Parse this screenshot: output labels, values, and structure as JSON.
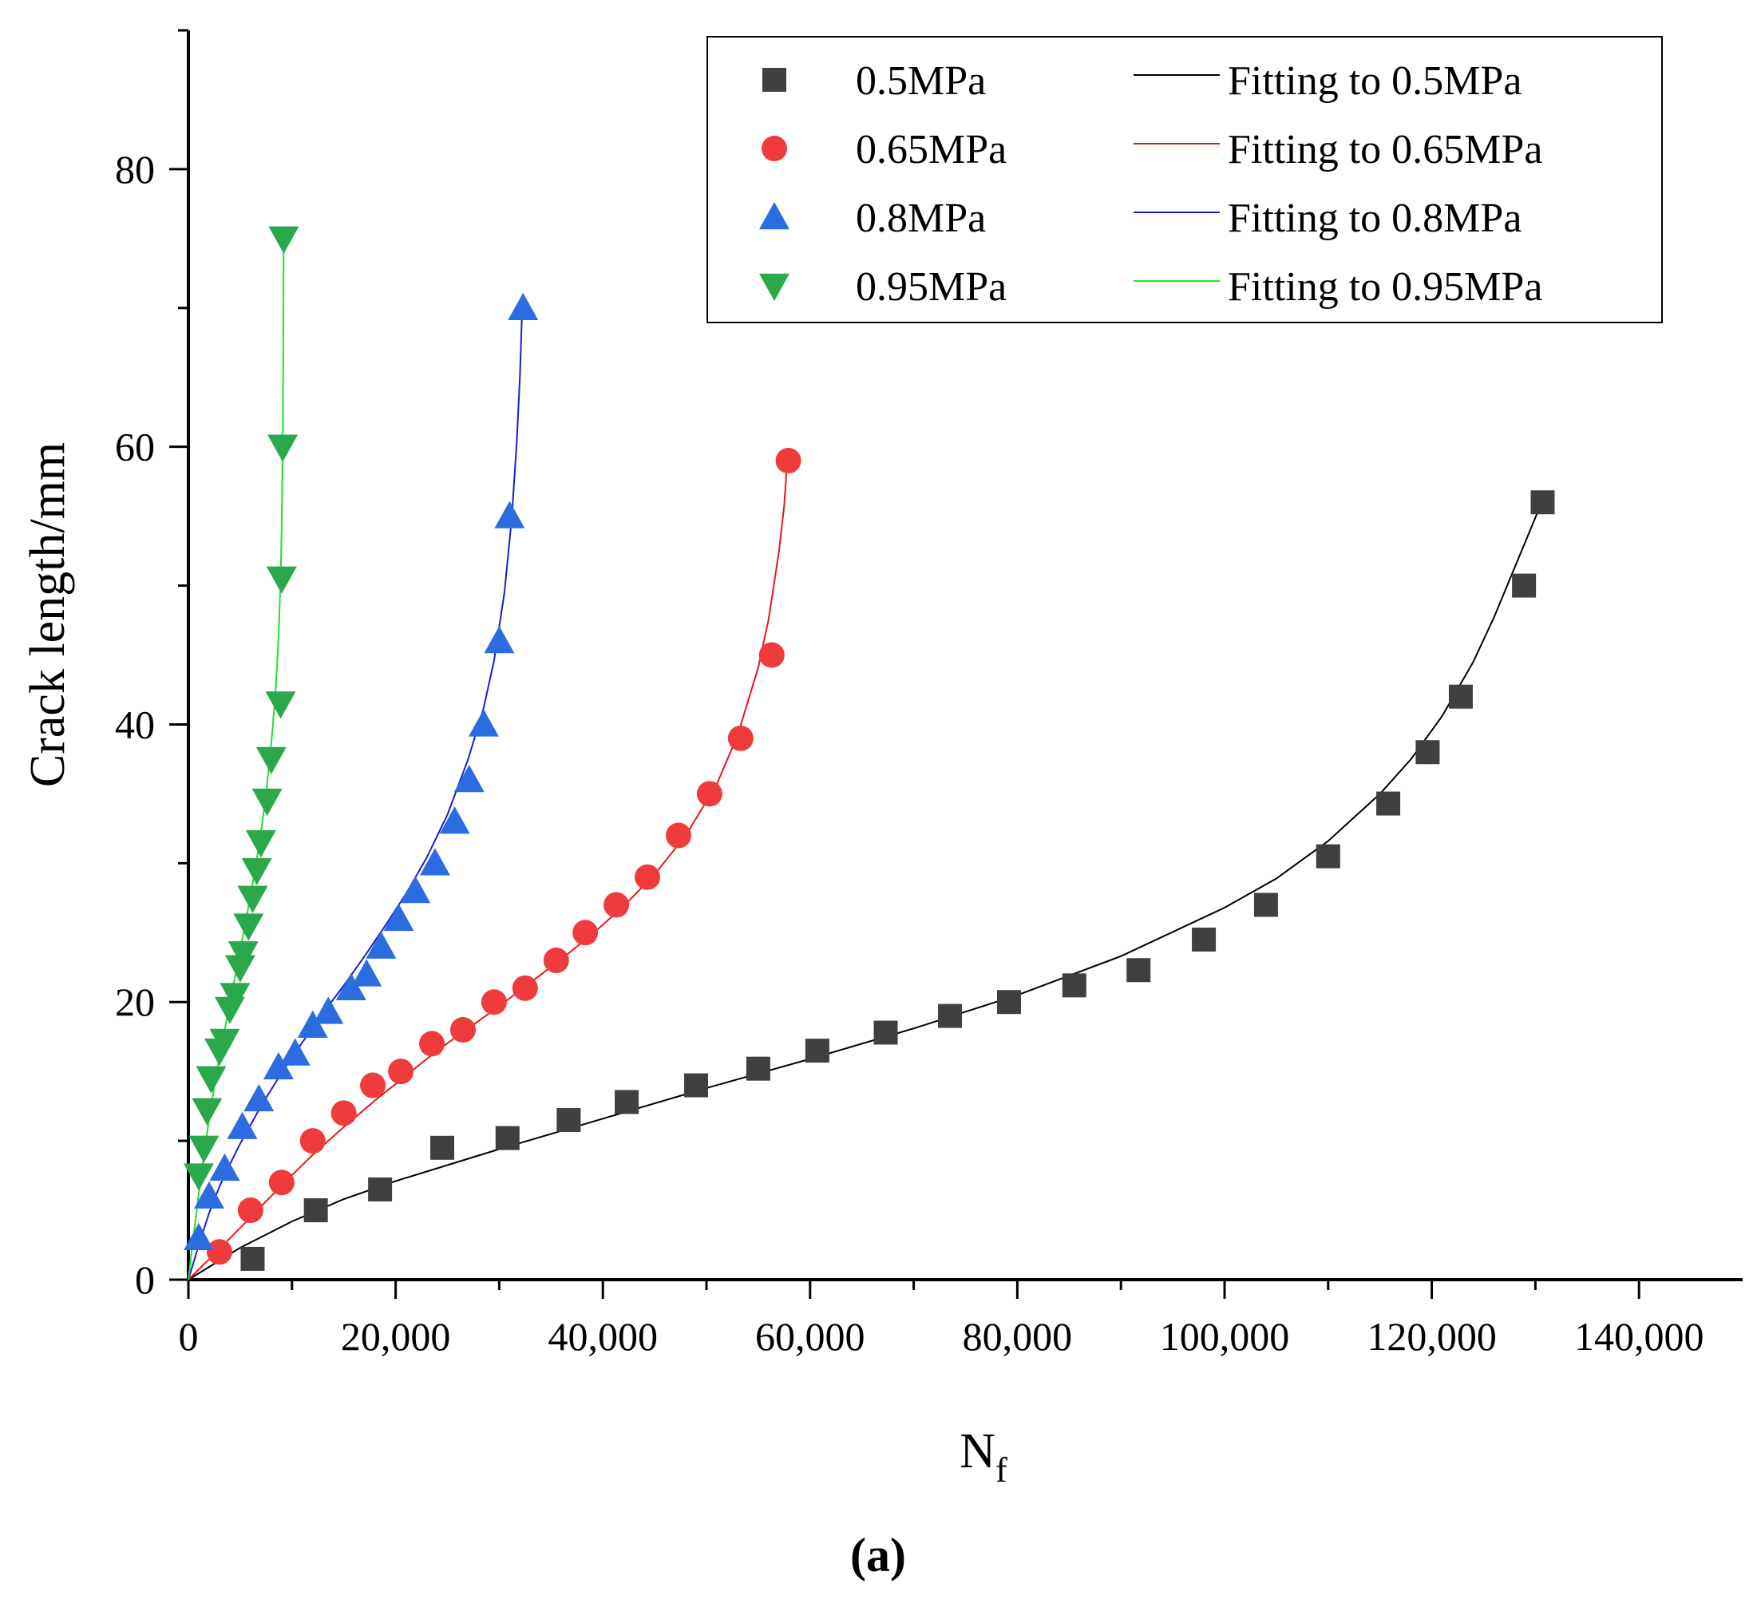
{
  "chart_data": {
    "type": "scatter",
    "title": "",
    "caption": "(a)",
    "xlabel": "N",
    "xlabel_sub": "f",
    "ylabel": "Crack length/mm",
    "xlim": [
      0,
      150000
    ],
    "ylim": [
      0,
      90
    ],
    "x_ticks": [
      0,
      20000,
      40000,
      60000,
      80000,
      100000,
      120000,
      140000
    ],
    "x_tick_labels": [
      "0",
      "20,000",
      "40,000",
      "60,000",
      "80,000",
      "100,000",
      "120,000",
      "140,000"
    ],
    "y_ticks": [
      0,
      20,
      40,
      60,
      80
    ],
    "y_tick_labels": [
      "0",
      "20",
      "40",
      "60",
      "80"
    ],
    "grid": false,
    "legend_position": "top-right",
    "series": [
      {
        "name": "0.5MPa",
        "fit_name": "Fitting to 0.5MPa",
        "marker": "square",
        "marker_color": "#404040",
        "fit_color": "#000000",
        "x": [
          6200,
          12300,
          18500,
          24500,
          30800,
          36700,
          42300,
          49000,
          55000,
          60700,
          67300,
          73500,
          79200,
          85500,
          91700,
          98000,
          104000,
          110000,
          115800,
          119600,
          122800,
          128900,
          130700
        ],
        "y": [
          1.5,
          5,
          6.5,
          9.5,
          10.2,
          11.5,
          12.8,
          14,
          15.2,
          16.5,
          17.8,
          19,
          20,
          21.2,
          22.3,
          24.5,
          27,
          30.5,
          34.3,
          38,
          42,
          50,
          56
        ],
        "fit_x": [
          0,
          5000,
          10000,
          15000,
          20000,
          30000,
          40000,
          50000,
          60000,
          70000,
          80000,
          90000,
          100000,
          105000,
          110000,
          115000,
          118000,
          121000,
          124000,
          126000,
          128000,
          129500,
          130500,
          131000
        ],
        "fit_y": [
          0,
          2.3,
          4.2,
          5.8,
          7.1,
          9.4,
          11.6,
          13.8,
          15.9,
          18.1,
          20.5,
          23.3,
          26.8,
          28.9,
          31.6,
          35.0,
          37.5,
          40.6,
          44.5,
          47.7,
          51.3,
          54.0,
          55.8,
          56.5
        ]
      },
      {
        "name": "0.65MPa",
        "fit_name": "Fitting to 0.65MPa",
        "marker": "circle",
        "marker_color": "#ef3b3b",
        "fit_color": "#e8161c",
        "x": [
          3000,
          6000,
          9000,
          12000,
          15000,
          17800,
          20500,
          23500,
          26500,
          29500,
          32500,
          35500,
          38300,
          41300,
          44300,
          47300,
          50300,
          53300,
          56300,
          57900
        ],
        "y": [
          2,
          5,
          7,
          10,
          12,
          14,
          15,
          17,
          18,
          20,
          21,
          23,
          25,
          27,
          29,
          32,
          35,
          39,
          45,
          59
        ],
        "fit_x": [
          0,
          3000,
          6000,
          9000,
          12000,
          15000,
          18000,
          21000,
          24000,
          27000,
          30000,
          33000,
          36000,
          39000,
          42000,
          45000,
          48000,
          51000,
          53000,
          55000,
          56000,
          57000,
          57500,
          57800
        ],
        "fit_y": [
          0,
          2.2,
          4.5,
          6.8,
          9.0,
          11.0,
          12.9,
          14.7,
          16.5,
          18.1,
          19.7,
          21.4,
          23.1,
          24.9,
          26.9,
          29.2,
          32.0,
          35.7,
          39.2,
          44.1,
          47.6,
          52.5,
          55.8,
          59.0
        ]
      },
      {
        "name": "0.8MPa",
        "fit_name": "Fitting to 0.8MPa",
        "marker": "triangle-up",
        "marker_color": "#2b6de0",
        "fit_color": "#1c1ccf",
        "x": [
          1000,
          2000,
          3500,
          5200,
          6800,
          8700,
          10300,
          12000,
          13500,
          15700,
          17200,
          18600,
          20300,
          21900,
          23800,
          25700,
          27100,
          28500,
          30000,
          31000,
          32300
        ],
        "y": [
          3,
          6,
          8,
          11,
          13,
          15.3,
          16.3,
          18.3,
          19.3,
          21,
          22,
          24,
          26,
          28,
          30,
          33,
          36,
          40,
          46,
          55,
          70
        ],
        "fit_x": [
          0,
          1000,
          2000,
          3000,
          4000,
          5000,
          7000,
          9000,
          11000,
          13000,
          15000,
          17000,
          19000,
          21000,
          23000,
          25000,
          27000,
          28500,
          29500,
          30500,
          31200,
          31700,
          32000,
          32200
        ],
        "fit_y": [
          0,
          2.5,
          4.8,
          6.7,
          8.3,
          9.8,
          12.5,
          14.9,
          17.1,
          19.2,
          21.2,
          23.3,
          25.5,
          27.8,
          30.4,
          33.5,
          37.5,
          41.2,
          44.6,
          49.5,
          54.8,
          60.5,
          65.2,
          69.8
        ]
      },
      {
        "name": "0.95MPa",
        "fit_name": "Fitting to 0.95MPa",
        "marker": "triangle-down",
        "marker_color": "#2aa84a",
        "fit_color": "#22e02a",
        "x": [
          1000,
          1500,
          1800,
          2200,
          3000,
          3500,
          4000,
          4500,
          5000,
          5300,
          5800,
          6200,
          6600,
          7000,
          7600,
          8000,
          8900,
          9000,
          9100
        ],
        "y": [
          7.5,
          9.5,
          12.2,
          14.5,
          16.5,
          17.2,
          19.5,
          20.5,
          22.5,
          23.5,
          25.5,
          27.5,
          29.5,
          31.5,
          34.5,
          37.5,
          41.5,
          50.5,
          60
        ],
        "extra_x": [
          9200
        ],
        "extra_y": [
          75
        ],
        "fit_x": [
          0,
          500,
          1000,
          1500,
          2000,
          2500,
          3000,
          3500,
          4000,
          4500,
          5000,
          5500,
          6000,
          6500,
          7000,
          7500,
          8000,
          8400,
          8700,
          8900,
          9000,
          9100,
          9150,
          9200
        ],
        "fit_y": [
          0,
          3.2,
          6.2,
          9.0,
          11.6,
          13.9,
          16.0,
          18.0,
          19.9,
          21.8,
          23.7,
          25.7,
          27.7,
          29.8,
          32.2,
          35.0,
          38.6,
          42.2,
          46.2,
          50.5,
          54.0,
          60.0,
          66.0,
          75.0
        ]
      }
    ]
  }
}
